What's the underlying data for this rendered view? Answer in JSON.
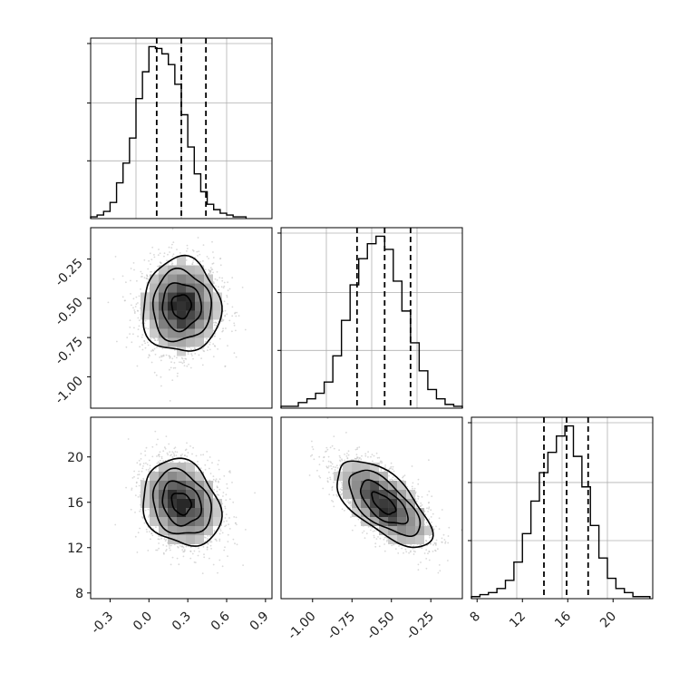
{
  "chart_data": [
    {
      "panel": "hist_param1",
      "type": "histogram",
      "x_range": [
        -0.45,
        0.95
      ],
      "bin_edges_start": -0.45,
      "bin_width": 0.05,
      "counts": [
        1,
        2,
        4,
        9,
        20,
        31,
        45,
        67,
        82,
        96,
        95,
        92,
        86,
        75,
        58,
        40,
        25,
        15,
        8,
        5,
        3,
        2,
        1,
        1
      ],
      "quantile_lines": [
        0.06,
        0.25,
        0.44
      ],
      "grid": true
    },
    {
      "panel": "hist_param2",
      "type": "histogram",
      "x_range": [
        -1.15,
        -0.1
      ],
      "bin_edges_start": -1.15,
      "bin_width": 0.05,
      "counts": [
        1,
        1,
        3,
        5,
        8,
        14,
        28,
        47,
        66,
        80,
        88,
        92,
        85,
        68,
        52,
        35,
        20,
        10,
        5,
        2,
        1
      ],
      "quantile_lines": [
        -0.71,
        -0.55,
        -0.4
      ],
      "grid": true
    },
    {
      "panel": "hist_param3",
      "type": "histogram",
      "x_range": [
        7.5,
        23.5
      ],
      "bin_edges_start": 7.5,
      "bin_width": 0.75,
      "counts": [
        1,
        2,
        3,
        5,
        9,
        18,
        32,
        48,
        62,
        72,
        80,
        85,
        70,
        55,
        36,
        20,
        10,
        5,
        3,
        1,
        1
      ],
      "quantile_lines": [
        13.9,
        15.9,
        17.8
      ],
      "grid": true
    },
    {
      "panel": "corr_param1_param2",
      "type": "scatter",
      "x_range": [
        -0.45,
        0.95
      ],
      "y_range": [
        -1.2,
        -0.05
      ],
      "center": [
        0.25,
        -0.55
      ],
      "spread": [
        0.15,
        0.15
      ],
      "correlation": 0.0,
      "contour_radii_sigma": [
        0.5,
        1.0,
        1.5,
        2.0
      ],
      "ticks_y": [
        "-0.25",
        "-0.50",
        "-0.75",
        "-1.00"
      ]
    },
    {
      "panel": "corr_param1_param3",
      "type": "scatter",
      "x_range": [
        -0.45,
        0.95
      ],
      "y_range": [
        7.5,
        23.5
      ],
      "center": [
        0.25,
        15.9
      ],
      "spread": [
        0.15,
        1.9
      ],
      "correlation": -0.2,
      "contour_radii_sigma": [
        0.5,
        1.0,
        1.5,
        2.0
      ],
      "ticks_x": [
        "-0.3",
        "0.0",
        "0.3",
        "0.6",
        "0.9"
      ],
      "ticks_y": [
        "20",
        "16",
        "12",
        "8"
      ]
    },
    {
      "panel": "corr_param2_param3",
      "type": "scatter",
      "x_range": [
        -1.2,
        -0.05
      ],
      "y_range": [
        7.5,
        23.5
      ],
      "center": [
        -0.55,
        15.9
      ],
      "spread": [
        0.15,
        1.9
      ],
      "correlation": -0.65,
      "contour_radii_sigma": [
        0.5,
        1.0,
        1.5,
        2.0
      ],
      "ticks_x": [
        "-1.00",
        "-0.75",
        "-0.50",
        "-0.25"
      ]
    }
  ],
  "hist3_ticks_x": [
    "8",
    "12",
    "16",
    "20"
  ],
  "colors": {
    "ink": "#000000",
    "grid": "#b0b0b0",
    "scatter": "#bfbfbf"
  }
}
